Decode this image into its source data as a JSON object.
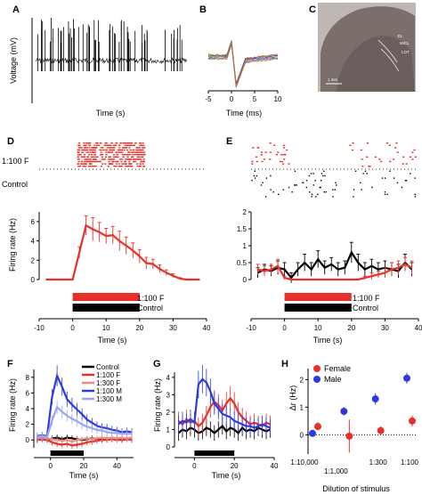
{
  "panels": [
    {
      "label": "A"
    },
    {
      "label": "B"
    },
    {
      "label": "C"
    },
    {
      "label": "D"
    },
    {
      "label": "E"
    },
    {
      "label": "F"
    },
    {
      "label": "G"
    },
    {
      "label": "H"
    }
  ],
  "histology": {
    "labels": [
      "EL",
      "MiCL",
      "LOT"
    ],
    "scalebar": "1 mm"
  },
  "colors": {
    "red": "#e8302a",
    "black": "#000000",
    "blue": "#2b3be0",
    "lightred": "#f08a84",
    "lightblue": "#9aa6f2",
    "spike_colors": [
      "#e8302a",
      "#2b9d3a",
      "#2b3be0",
      "#c8a82a",
      "#9b3bd0",
      "#1ab0b0",
      "#e06a1a"
    ]
  },
  "raster": {
    "row_labels": [
      "1:100 F",
      "Control"
    ]
  },
  "stimulus_bars": {
    "red_label": "1:100 F",
    "black_label": "Control"
  },
  "chart_data": [
    {
      "panel": "A",
      "type": "line",
      "xlabel": "Time (s)",
      "ylabel": "Voltage (mV)"
    },
    {
      "panel": "B",
      "type": "line",
      "xlabel": "Time (ms)",
      "xlim": [
        -5,
        10
      ],
      "xticks": [
        "-5",
        "0",
        "5",
        "10"
      ]
    },
    {
      "panel": "D",
      "type": "line",
      "ylabel": "Firing rate (Hz)",
      "ylim": [
        0,
        7
      ],
      "yticks": [
        "0",
        "2",
        "4",
        "6"
      ],
      "xlabel": "Time (s)",
      "xlim": [
        -10,
        40
      ],
      "xticks": [
        "-10",
        "0",
        "10",
        "20",
        "30",
        "40"
      ],
      "series": [
        {
          "color": "red",
          "x": [
            -8,
            -6,
            -4,
            -2,
            0,
            2,
            4,
            6,
            8,
            10,
            12,
            14,
            16,
            18,
            20,
            22,
            24,
            26,
            28,
            30,
            32,
            34,
            36,
            38
          ],
          "y": [
            0,
            0,
            0,
            0,
            0,
            2.8,
            5.6,
            5.2,
            4.9,
            4.5,
            4.6,
            4.0,
            3.5,
            3.0,
            2.4,
            1.7,
            1.6,
            1.1,
            0.7,
            0.4,
            0.1,
            0,
            0,
            0
          ],
          "err": [
            0,
            0,
            0,
            0,
            0,
            0.6,
            1.0,
            1.2,
            1.0,
            0.8,
            0.9,
            1.0,
            0.9,
            0.8,
            0.7,
            0.6,
            0.5,
            0.4,
            0.3,
            0.2,
            0.1,
            0,
            0,
            0
          ]
        }
      ]
    },
    {
      "panel": "E",
      "type": "line",
      "ylim": [
        0,
        2
      ],
      "yticks": [
        "0",
        "0.5",
        "1",
        "1.5",
        "2"
      ],
      "xlabel": "Time (s)",
      "xlim": [
        -10,
        40
      ],
      "xticks": [
        "-10",
        "0",
        "10",
        "20",
        "30",
        "40"
      ],
      "series": [
        {
          "color": "black",
          "x": [
            -8,
            -6,
            -4,
            -2,
            0,
            2,
            4,
            6,
            8,
            10,
            12,
            14,
            16,
            18,
            20,
            22,
            24,
            26,
            28,
            30,
            32,
            34,
            36,
            38
          ],
          "y": [
            0.2,
            0.3,
            0.25,
            0.35,
            0.3,
            0.05,
            0.3,
            0.5,
            0.3,
            0.6,
            0.35,
            0.45,
            0.3,
            0.35,
            0.8,
            0.5,
            0.3,
            0.4,
            0.3,
            0.35,
            0.3,
            0.25,
            0.5,
            0.3
          ],
          "err": [
            0.15,
            0.15,
            0.15,
            0.2,
            0.2,
            0.15,
            0.2,
            0.25,
            0.2,
            0.25,
            0.2,
            0.2,
            0.2,
            0.2,
            0.3,
            0.25,
            0.2,
            0.2,
            0.2,
            0.2,
            0.2,
            0.2,
            0.25,
            0.2
          ]
        },
        {
          "color": "red",
          "x": [
            -8,
            -6,
            -4,
            -2,
            0,
            2,
            4,
            6,
            8,
            10,
            12,
            14,
            16,
            18,
            20,
            22,
            24,
            26,
            28,
            30,
            32,
            34,
            36,
            38
          ],
          "y": [
            0.3,
            0.25,
            0.3,
            0.4,
            0.05,
            0,
            0,
            0,
            0,
            0,
            0,
            0,
            0,
            0,
            0,
            0,
            0.05,
            0.1,
            0.15,
            0.2,
            0.3,
            0.35,
            0.45,
            0.35
          ],
          "err": [
            0.15,
            0.15,
            0.15,
            0.2,
            0.05,
            0,
            0,
            0,
            0,
            0,
            0,
            0,
            0,
            0,
            0,
            0,
            0.05,
            0.1,
            0.1,
            0.15,
            0.2,
            0.2,
            0.2,
            0.2
          ]
        }
      ]
    },
    {
      "panel": "F",
      "type": "line",
      "ylabel": "Firing rate (Hz)",
      "ylim": [
        -1,
        9
      ],
      "yticks": [
        "0",
        "2",
        "4",
        "6",
        "8"
      ],
      "xlabel": "Time (s)",
      "xlim": [
        -10,
        50
      ],
      "xticks": [
        "0",
        "20",
        "40"
      ],
      "legend_position": "top-right",
      "series": [
        {
          "name": "Control",
          "color": "black",
          "x": [
            -8,
            -5,
            -2,
            1,
            4,
            7,
            10,
            13,
            16,
            19,
            22,
            25,
            28,
            31,
            34,
            37,
            40,
            43,
            46,
            49
          ],
          "y": [
            0,
            0.1,
            0,
            0.2,
            0.3,
            0.1,
            0.3,
            0.2,
            0.1,
            0,
            0.1,
            0.2,
            0.1,
            0,
            0.1,
            0.1,
            0.2,
            0,
            0.1,
            0.1
          ]
        },
        {
          "name": "1:100 F",
          "color": "red",
          "x": [
            -8,
            -5,
            -2,
            1,
            4,
            7,
            10,
            13,
            16,
            19,
            22,
            25,
            28,
            31,
            34,
            37,
            40,
            43,
            46,
            49
          ],
          "y": [
            0,
            0.1,
            0,
            -0.3,
            -0.5,
            -0.6,
            -0.5,
            -0.7,
            -0.6,
            -0.5,
            -0.3,
            -0.2,
            -0.1,
            0,
            0,
            0.1,
            0,
            0,
            0.1,
            0
          ]
        },
        {
          "name": "1:300 F",
          "color": "lightred",
          "x": [
            -8,
            -5,
            -2,
            1,
            4,
            7,
            10,
            13,
            16,
            19,
            22,
            25,
            28,
            31,
            34,
            37,
            40,
            43,
            46,
            49
          ],
          "y": [
            0.2,
            0.3,
            0.2,
            0.1,
            0,
            -0.1,
            0,
            -0.2,
            0,
            0.1,
            0.2,
            0.1,
            0.2,
            0.3,
            0.2,
            0.3,
            0.2,
            0.3,
            0.2,
            0.3
          ]
        },
        {
          "name": "1:100 M",
          "color": "blue",
          "x": [
            -8,
            -5,
            -2,
            1,
            4,
            7,
            10,
            13,
            16,
            19,
            22,
            25,
            28,
            31,
            34,
            37,
            40,
            43,
            46,
            49
          ],
          "y": [
            0.5,
            0.6,
            0.5,
            5.5,
            8.2,
            6.8,
            5.2,
            4.5,
            3.9,
            3.3,
            2.6,
            2.2,
            1.8,
            1.6,
            1.5,
            1.3,
            1.2,
            1.0,
            1.1,
            1.0
          ]
        },
        {
          "name": "1:300 M",
          "color": "lightblue",
          "x": [
            -8,
            -5,
            -2,
            1,
            4,
            7,
            10,
            13,
            16,
            19,
            22,
            25,
            28,
            31,
            34,
            37,
            40,
            43,
            46,
            49
          ],
          "y": [
            0.4,
            0.5,
            0.4,
            2.5,
            4.2,
            3.6,
            3.1,
            2.7,
            2.4,
            2.0,
            1.7,
            1.5,
            1.3,
            1.2,
            1.0,
            0.9,
            0.9,
            0.8,
            0.8,
            0.8
          ]
        }
      ]
    },
    {
      "panel": "G",
      "type": "line",
      "ylabel": "Firing rate (Hz)",
      "ylim": [
        0,
        4.3
      ],
      "yticks": [
        "0",
        "1",
        "2",
        "3",
        "4"
      ],
      "xlabel": "Time (s)",
      "xlim": [
        -10,
        40
      ],
      "xticks": [
        "0",
        "20",
        "40"
      ],
      "series": [
        {
          "color": "black",
          "x": [
            -8,
            -6,
            -4,
            -2,
            0,
            2,
            4,
            6,
            8,
            10,
            12,
            14,
            16,
            18,
            20,
            22,
            24,
            26,
            28,
            30,
            32,
            34,
            36,
            38
          ],
          "y": [
            0.8,
            1.0,
            0.9,
            1.1,
            1.0,
            0.8,
            0.9,
            1.1,
            1.0,
            0.8,
            1.0,
            1.2,
            0.9,
            1.1,
            1.0,
            0.8,
            1.1,
            0.9,
            1.0,
            0.9,
            1.1,
            1.0,
            0.9,
            1.0
          ]
        },
        {
          "color": "red",
          "x": [
            -8,
            -6,
            -4,
            -2,
            0,
            2,
            4,
            6,
            8,
            10,
            12,
            14,
            16,
            18,
            20,
            22,
            24,
            26,
            28,
            30,
            32,
            34,
            36,
            38
          ],
          "y": [
            1.5,
            1.3,
            1.6,
            1.4,
            1.5,
            1.2,
            1.4,
            1.8,
            2.3,
            2.6,
            2.4,
            2.1,
            2.5,
            2.8,
            2.5,
            2.0,
            1.7,
            1.5,
            1.3,
            1.4,
            1.3,
            1.2,
            1.4,
            1.3
          ]
        },
        {
          "color": "blue",
          "x": [
            -8,
            -6,
            -4,
            -2,
            0,
            2,
            4,
            6,
            8,
            10,
            12,
            14,
            16,
            18,
            20,
            22,
            24,
            26,
            28,
            30,
            32,
            34,
            36,
            38
          ],
          "y": [
            1.3,
            1.5,
            1.4,
            1.6,
            1.4,
            3.6,
            3.9,
            3.7,
            3.2,
            2.5,
            2.2,
            1.9,
            1.8,
            1.7,
            1.5,
            1.4,
            1.3,
            1.2,
            1.2,
            1.1,
            1.2,
            1.3,
            1.2,
            1.1
          ]
        }
      ]
    },
    {
      "panel": "H",
      "type": "scatter",
      "ylabel": "Δr (Hz)",
      "ylim": [
        -0.7,
        2.4
      ],
      "yticks": [
        "0",
        "1",
        "2"
      ],
      "xlabel": "Dilution of stimulus",
      "categories": [
        "1:10,000",
        "1:1,000",
        "1:300",
        "1:100"
      ],
      "legend_position": "top-left",
      "series": [
        {
          "name": "Female",
          "color": "red",
          "x": [
            1,
            2,
            3,
            4
          ],
          "y": [
            0.3,
            -0.05,
            0.15,
            0.5
          ],
          "err": [
            0.15,
            0.6,
            0.15,
            0.2
          ]
        },
        {
          "name": "Male",
          "color": "blue",
          "x": [
            1,
            2,
            3,
            4
          ],
          "y": [
            0.05,
            0.85,
            1.3,
            2.05
          ],
          "err": [
            0.1,
            0.15,
            0.2,
            0.2
          ]
        }
      ]
    }
  ]
}
